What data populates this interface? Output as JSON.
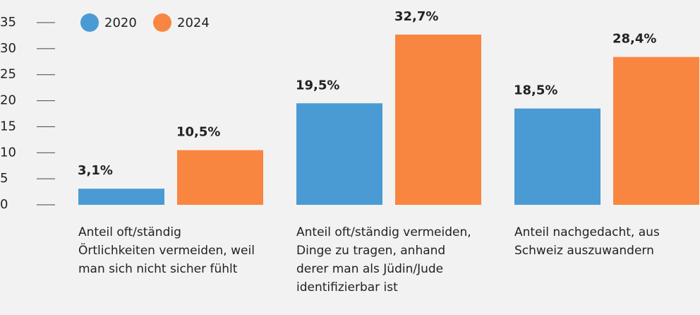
{
  "chart_data": {
    "type": "bar",
    "categories": [
      "Anteil oft/ständig Örtlichkeiten vermeiden, weil man sich nicht sicher fühlt",
      "Anteil oft/ständig vermeiden, Dinge zu tragen, anhand derer man als Jüdin/Jude identifizierbar ist",
      "Anteil nachgedacht, aus Schweiz auszuwandern"
    ],
    "series": [
      {
        "name": "2020",
        "color": "#4a9bd4",
        "values": [
          3.1,
          19.5,
          18.5
        ],
        "value_labels": [
          "3,1%",
          "19,5%",
          "18,5%"
        ]
      },
      {
        "name": "2024",
        "color": "#f98640",
        "values": [
          10.5,
          32.7,
          28.4
        ],
        "value_labels": [
          "10,5%",
          "32,7%",
          "28,4%"
        ]
      }
    ],
    "ylim": [
      0,
      35
    ],
    "yticks": [
      0,
      5,
      10,
      15,
      20,
      25,
      30,
      35
    ],
    "legend": "top-left"
  }
}
